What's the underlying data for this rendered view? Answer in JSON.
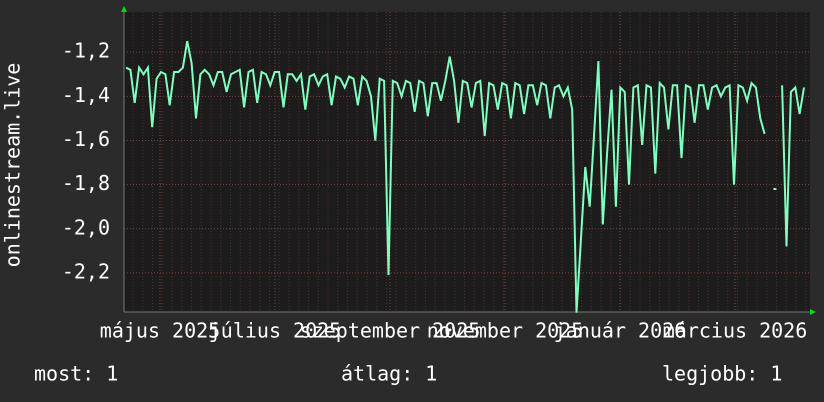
{
  "chart_data": {
    "type": "line",
    "y_label": "onlinestream.live",
    "x_labels": [
      "május 2025",
      "július 2025",
      "szeptember 2025",
      "november 2025",
      "január 2026",
      "március 2026"
    ],
    "ylim": [
      -2.377,
      -1.018
    ],
    "yticks": [
      {
        "value": -1.2,
        "label": "-1,2"
      },
      {
        "value": -1.4,
        "label": "-1,4"
      },
      {
        "value": -1.6,
        "label": "-1,6"
      },
      {
        "value": -1.8,
        "label": "-1,8"
      },
      {
        "value": -2.0,
        "label": "-2,0"
      },
      {
        "value": -2.2,
        "label": "-2,2"
      }
    ],
    "grid": true,
    "series": [
      {
        "color": "#80ffbf",
        "values": [
          -1.27,
          -1.28,
          -1.43,
          -1.27,
          -1.3,
          -1.27,
          -1.54,
          -1.32,
          -1.29,
          -1.3,
          -1.44,
          -1.29,
          -1.29,
          -1.27,
          -1.15,
          -1.25,
          -1.5,
          -1.3,
          -1.28,
          -1.3,
          -1.35,
          -1.29,
          -1.29,
          -1.38,
          -1.3,
          -1.29,
          -1.28,
          -1.45,
          -1.29,
          -1.28,
          -1.43,
          -1.29,
          -1.3,
          -1.35,
          -1.29,
          -1.29,
          -1.45,
          -1.3,
          -1.3,
          -1.33,
          -1.3,
          -1.46,
          -1.31,
          -1.3,
          -1.35,
          -1.31,
          -1.3,
          -1.44,
          -1.31,
          -1.32,
          -1.36,
          -1.31,
          -1.32,
          -1.44,
          -1.31,
          -1.33,
          -1.4,
          -1.6,
          -1.32,
          -1.33,
          -2.21,
          -1.33,
          -1.34,
          -1.4,
          -1.33,
          -1.34,
          -1.47,
          -1.33,
          -1.34,
          -1.49,
          -1.34,
          -1.34,
          -1.42,
          -1.33,
          -1.22,
          -1.33,
          -1.52,
          -1.33,
          -1.34,
          -1.45,
          -1.34,
          -1.33,
          -1.58,
          -1.34,
          -1.35,
          -1.46,
          -1.34,
          -1.35,
          -1.5,
          -1.34,
          -1.35,
          -1.48,
          -1.35,
          -1.35,
          -1.44,
          -1.34,
          -1.35,
          -1.5,
          -1.36,
          -1.35,
          -1.4,
          -1.36,
          -1.46,
          -2.38,
          -2.05,
          -1.72,
          -1.9,
          -1.58,
          -1.24,
          -1.98,
          -1.65,
          -1.37,
          -1.9,
          -1.36,
          -1.38,
          -1.8,
          -1.36,
          -1.35,
          -1.62,
          -1.35,
          -1.36,
          -1.75,
          -1.34,
          -1.36,
          -1.55,
          -1.35,
          -1.35,
          -1.68,
          -1.35,
          -1.36,
          -1.52,
          -1.35,
          -1.35,
          -1.46,
          -1.36,
          -1.35,
          -1.4,
          -1.36,
          -1.35,
          -1.8,
          -1.35,
          -1.36,
          -1.42,
          -1.34,
          -1.36,
          -1.5,
          -1.57,
          null,
          -1.82,
          null,
          -1.35,
          -2.08,
          -1.38,
          -1.36,
          -1.48,
          -1.36
        ]
      }
    ]
  },
  "footer": {
    "current": "most: 1",
    "average": "átlag: 1",
    "best": "legjobb: 1"
  }
}
